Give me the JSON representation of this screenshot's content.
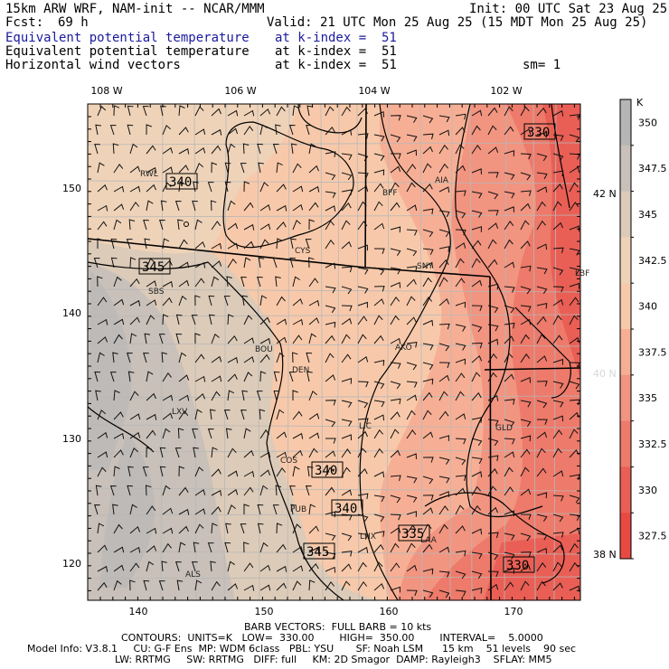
{
  "header": {
    "model": "15km ARW WRF, NAM-init -- NCAR/MMM",
    "init": "Init: 00 UTC Sat 23 Aug 25",
    "fcst_label": "Fcst:",
    "fcst_value": "69 h",
    "valid": "Valid: 21 UTC Mon 25 Aug 25 (15 MDT Mon 25 Aug 25)",
    "fields": [
      {
        "name": "Equivalent potential temperature",
        "level": "at k-index =  51",
        "color": "#1a1aa0"
      },
      {
        "name": "Equivalent potential temperature",
        "level": "at k-index =  51",
        "color": "#000000"
      },
      {
        "name": "Horizontal wind vectors",
        "level": "at k-index =  51",
        "color": "#000000"
      }
    ],
    "sm": "sm= 1"
  },
  "axes": {
    "top_lon": [
      "108 W",
      "106 W",
      "104 W",
      "102 W"
    ],
    "right_lat": [
      "42 N",
      "40 N",
      "38 N"
    ],
    "left_y": [
      "150",
      "140",
      "130",
      "120"
    ],
    "bottom_x": [
      "140",
      "150",
      "160",
      "170"
    ]
  },
  "colorbar": {
    "unit": "K",
    "labels": [
      "350",
      "347.5",
      "345",
      "342.5",
      "340",
      "337.5",
      "335",
      "332.5",
      "330",
      "327.5"
    ],
    "colors": [
      "#b5b5b5",
      "#c8c0b9",
      "#dccbb8",
      "#efd3b8",
      "#f7c9aa",
      "#f6af95",
      "#f19480",
      "#ed7a6a",
      "#e95f55",
      "#e84a42"
    ]
  },
  "stations": [
    "RWL",
    "BFF",
    "AIA",
    "CYS",
    "SNY",
    "SBS",
    "BOU",
    "AKO",
    "DEN",
    "LXV",
    "LIC",
    "GLD",
    "COS",
    "PUB",
    "LHX",
    "LAA",
    "ALS",
    "LBF"
  ],
  "contour_labels": [
    "330",
    "340",
    "345",
    "340",
    "340",
    "345",
    "335",
    "330"
  ],
  "footer": {
    "barb": "BARB VECTORS:  FULL BARB = 10 kts",
    "contours": "CONTOURS:  UNITS=K   LOW=  330.00        HIGH=  350.00        INTERVAL=    5.0000",
    "model_info": "Model Info: V3.8.1     CU: G-F Ens  MP: WDM 6class   PBL: YSU       SF: Noah LSM      15 km    51 levels    90 sec",
    "physics": "LW: RRTMG     SW: RRTMG   DIFF: full     KM: 2D Smagor  DAMP: Rayleigh3    SFLAY: MM5"
  }
}
